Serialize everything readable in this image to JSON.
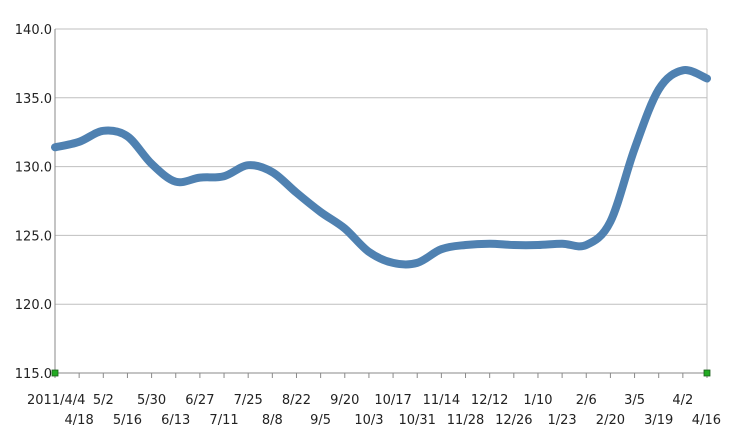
{
  "chart_data": {
    "type": "line",
    "title": "",
    "xlabel": "",
    "ylabel": "",
    "ylim": [
      115,
      140
    ],
    "yticks": [
      "115.0",
      "120.0",
      "125.0",
      "130.0",
      "135.0",
      "140.0"
    ],
    "grid": true,
    "legend": "none",
    "x": [
      "2011/4/4",
      "4/18",
      "5/2",
      "5/16",
      "5/30",
      "6/13",
      "6/27",
      "7/11",
      "7/25",
      "8/8",
      "8/22",
      "9/5",
      "9/20",
      "10/3",
      "10/17",
      "10/31",
      "11/14",
      "11/28",
      "12/12",
      "12/26",
      "1/10",
      "1/23",
      "2/6",
      "2/20",
      "3/5",
      "3/19",
      "4/2",
      "4/16"
    ],
    "series": [
      {
        "color": "#4f81b1",
        "values": [
          131.4,
          131.8,
          132.6,
          132.2,
          130.2,
          128.9,
          129.2,
          129.3,
          130.1,
          129.6,
          128.1,
          126.7,
          125.5,
          123.8,
          123.0,
          123.0,
          124.0,
          124.3,
          124.4,
          124.3,
          124.3,
          124.4,
          124.3,
          126.0,
          131.3,
          135.6,
          137.0,
          136.4
        ]
      }
    ],
    "markers": [
      {
        "label": "start",
        "color": "#22aa22",
        "x_index": 0,
        "y": 115
      },
      {
        "label": "end",
        "color": "#22aa22",
        "x_index": 27,
        "y": 115
      }
    ]
  }
}
